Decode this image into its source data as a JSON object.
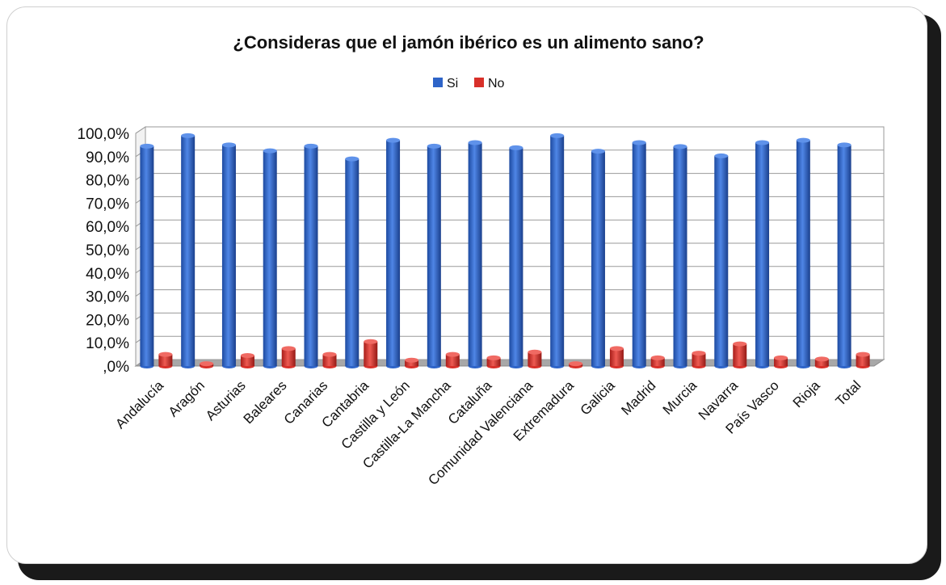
{
  "chart_data": {
    "type": "bar",
    "title": "¿Consideras que el jamón ibérico es un alimento sano?",
    "categories": [
      "Andalucía",
      "Aragón",
      "Asturias",
      "Baleares",
      "Canarias",
      "Cantabria",
      "Castilla y León",
      "Castilla-La Mancha",
      "Cataluña",
      "Comunidad Valenciana",
      "Extremadura",
      "Galicia",
      "Madrid",
      "Murcia",
      "Navarra",
      "País Vasco",
      "Rioja",
      "Total"
    ],
    "series": [
      {
        "name": "Si",
        "color": "#2e64c8",
        "values": [
          94.5,
          99.0,
          95.0,
          92.5,
          94.5,
          89.0,
          97.0,
          94.5,
          96.0,
          93.8,
          99.0,
          92.3,
          96.0,
          94.3,
          90.3,
          96.0,
          97.0,
          95.0
        ]
      },
      {
        "name": "No",
        "color": "#d8302a",
        "values": [
          5.0,
          1.0,
          4.5,
          7.5,
          5.0,
          10.5,
          2.5,
          5.0,
          3.5,
          6.0,
          1.0,
          7.5,
          3.5,
          5.5,
          9.5,
          3.5,
          3.0,
          5.0
        ]
      }
    ],
    "yticks": [
      ",0%",
      "10,0%",
      "20,0%",
      "30,0%",
      "40,0%",
      "50,0%",
      "60,0%",
      "70,0%",
      "80,0%",
      "90,0%",
      "100,0%"
    ],
    "ylim": [
      0,
      100
    ],
    "xlabel": "",
    "ylabel": "",
    "legend_position": "top-center",
    "grid": true
  }
}
